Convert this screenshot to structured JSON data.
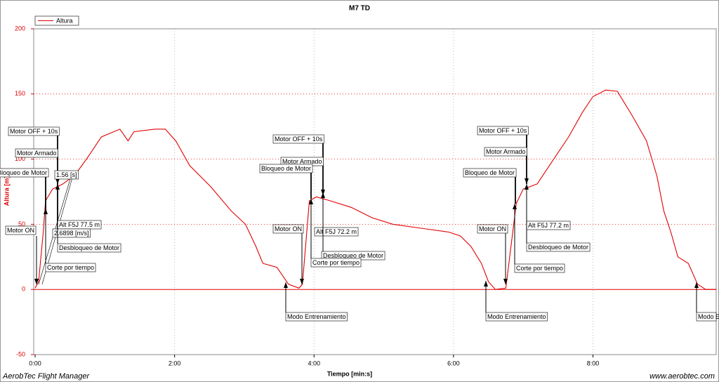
{
  "chart_data": {
    "type": "line",
    "title": "M7 TD",
    "xlabel": "Tiempo [min:s]",
    "ylabel": "Altura [m]",
    "footer_left": "AerobTec Flight Manager",
    "footer_right": "www.aerobtec.com",
    "x": [
      0,
      3,
      7,
      9,
      15,
      24,
      30,
      36,
      45,
      57,
      73,
      80,
      85,
      103,
      112,
      121,
      133,
      151,
      169,
      181,
      190,
      196,
      208,
      218,
      227,
      230,
      236,
      242,
      254,
      272,
      290,
      308,
      332,
      356,
      366,
      375,
      384,
      390,
      396,
      405,
      414,
      420,
      432,
      447,
      459,
      471,
      480,
      491,
      501,
      514,
      526,
      535,
      541,
      547,
      553,
      562,
      570,
      577,
      586
    ],
    "series": [
      {
        "name": "Altura",
        "color": "#e00000",
        "values": [
          1,
          6,
          44,
          68,
          77,
          81,
          85,
          90,
          101,
          117,
          123,
          114,
          121,
          123,
          123,
          114,
          95,
          79,
          60,
          50,
          33,
          20,
          17,
          4,
          1,
          4,
          68,
          71,
          68,
          63,
          55,
          50,
          47,
          44,
          41,
          33,
          20,
          6,
          0,
          1,
          66,
          77,
          81,
          101,
          117,
          136,
          148,
          153,
          152,
          133,
          114,
          87,
          60,
          44,
          25,
          20,
          4,
          0,
          0
        ]
      }
    ],
    "xlim": [
      0,
      586
    ],
    "xticks": [
      {
        "value": 0,
        "label": "0:00"
      },
      {
        "value": 120,
        "label": "2:00"
      },
      {
        "value": 240,
        "label": "4:00"
      },
      {
        "value": 360,
        "label": "6:00"
      },
      {
        "value": 480,
        "label": "8:00"
      }
    ],
    "ylim": [
      -50,
      200
    ],
    "yticks": [
      -50,
      0,
      50,
      100,
      150,
      200
    ],
    "grid": true,
    "legend": "upper left",
    "annotations": [
      "Motor OFF + 10s",
      "Motor Armado",
      "Bloqueo de Motor",
      "1.56 [s]",
      "Motor ON",
      "Alt F5J  77.5 m",
      "2.6898 [m/s]",
      "Desbloqueo de Motor",
      "Corte por tiempo",
      "Motor OFF + 10s",
      "Motor Armado",
      "Bloqueo de Motor",
      "Motor ON",
      "Alt F5J  72.2 m",
      "Desbloqueo de Motor",
      "Corte por tiempo",
      "Modo Entrenamiento",
      "Motor OFF + 10s",
      "Motor Armado",
      "Bloqueo de Motor",
      "Motor ON",
      "Alt F5J  77.2 m",
      "Desbloqueo de Motor",
      "Corte por tiempo",
      "Modo Entrenamiento",
      "Modo E"
    ]
  }
}
